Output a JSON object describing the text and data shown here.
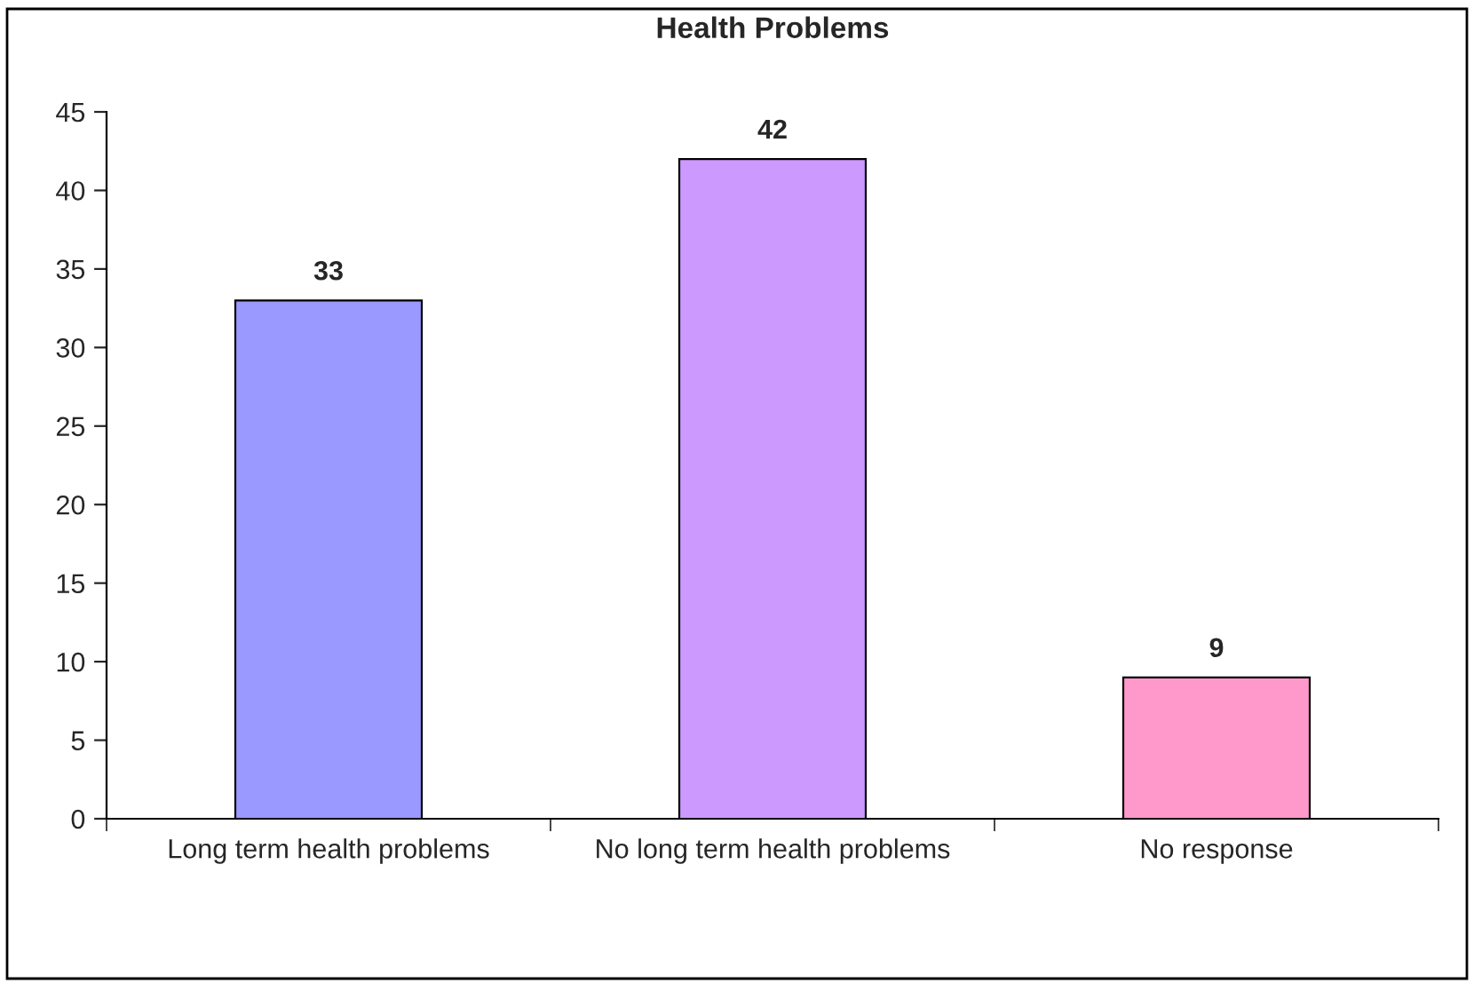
{
  "chart_data": {
    "type": "bar",
    "title": "Health Problems",
    "categories": [
      "Long term health problems",
      "No long term health problems",
      "No response"
    ],
    "values": [
      33,
      42,
      9
    ],
    "colors": [
      "#9999ff",
      "#cc99ff",
      "#ff99cc"
    ],
    "ylim": [
      0,
      45
    ],
    "yticks": [
      0,
      5,
      10,
      15,
      20,
      25,
      30,
      35,
      40,
      45
    ],
    "grid": false,
    "legend": false,
    "data_labels": true
  }
}
